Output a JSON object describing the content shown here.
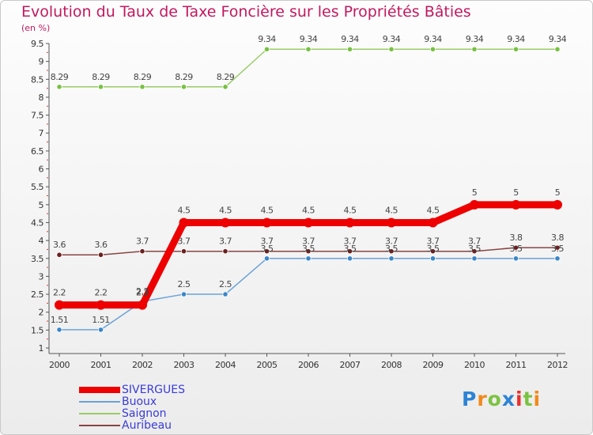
{
  "chart_data": {
    "type": "line",
    "title": "Evolution du Taux de Taxe Foncière sur les Propriétés Bâties",
    "subtitle": "(en %)",
    "xlabel": "",
    "ylabel": "(en %)",
    "ylim": [
      1,
      9.5
    ],
    "yticks": [
      "1",
      "1.5",
      "2",
      "2.5",
      "3",
      "3.5",
      "4",
      "4.5",
      "5",
      "5.5",
      "6",
      "6.5",
      "7",
      "7.5",
      "8",
      "8.5",
      "9",
      "9.5"
    ],
    "categories": [
      "2000",
      "2001",
      "2002",
      "2003",
      "2004",
      "2005",
      "2006",
      "2007",
      "2008",
      "2009",
      "2010",
      "2011",
      "2012"
    ],
    "series": [
      {
        "name": "Saignon",
        "color": "#99cc66",
        "marker": "#77c142",
        "values": [
          8.29,
          8.29,
          8.29,
          8.29,
          8.29,
          9.34,
          9.34,
          9.34,
          9.34,
          9.34,
          9.34,
          9.34,
          9.34
        ],
        "labels": [
          "8.29",
          "8.29",
          "8.29",
          "8.29",
          "8.29",
          "9.34",
          "9.34",
          "9.34",
          "9.34",
          "9.34",
          "9.34",
          "9.34",
          "9.34"
        ]
      },
      {
        "name": "Buoux",
        "color": "#6aa2d8",
        "marker": "#3b86c8",
        "values": [
          1.51,
          1.51,
          2.3,
          2.5,
          2.5,
          3.5,
          3.5,
          3.5,
          3.5,
          3.5,
          3.5,
          3.5,
          3.5
        ],
        "labels": [
          "1.51",
          "1.51",
          "2.3",
          "2.5",
          "2.5",
          "3.5",
          "3.5",
          "3.5",
          "3.5",
          "3.5",
          "3.5",
          "3.5",
          "3.5"
        ]
      },
      {
        "name": "Auribeau",
        "color": "#8a4444",
        "marker": "#6b1f1f",
        "values": [
          3.6,
          3.6,
          3.7,
          3.7,
          3.7,
          3.7,
          3.7,
          3.7,
          3.7,
          3.7,
          3.7,
          3.8,
          3.8
        ],
        "labels": [
          "3.6",
          "3.6",
          "3.7",
          "3.7",
          "3.7",
          "3.7",
          "3.7",
          "3.7",
          "3.7",
          "3.7",
          "3.7",
          "3.8",
          "3.8"
        ]
      },
      {
        "name": "SIVERGUES",
        "color": "#ee0000",
        "marker": "#ee0000",
        "values": [
          2.2,
          2.2,
          2.2,
          4.5,
          4.5,
          4.5,
          4.5,
          4.5,
          4.5,
          4.5,
          5,
          5,
          5
        ],
        "labels": [
          "2.2",
          "2.2",
          "2.2",
          "4.5",
          "4.5",
          "4.5",
          "4.5",
          "4.5",
          "4.5",
          "4.5",
          "5",
          "5",
          "5"
        ]
      }
    ],
    "legend": [
      "SIVERGUES",
      "Buoux",
      "Saignon",
      "Auribeau"
    ]
  },
  "logo": [
    "P",
    "r",
    "o",
    "x",
    "i",
    "t",
    "i"
  ]
}
